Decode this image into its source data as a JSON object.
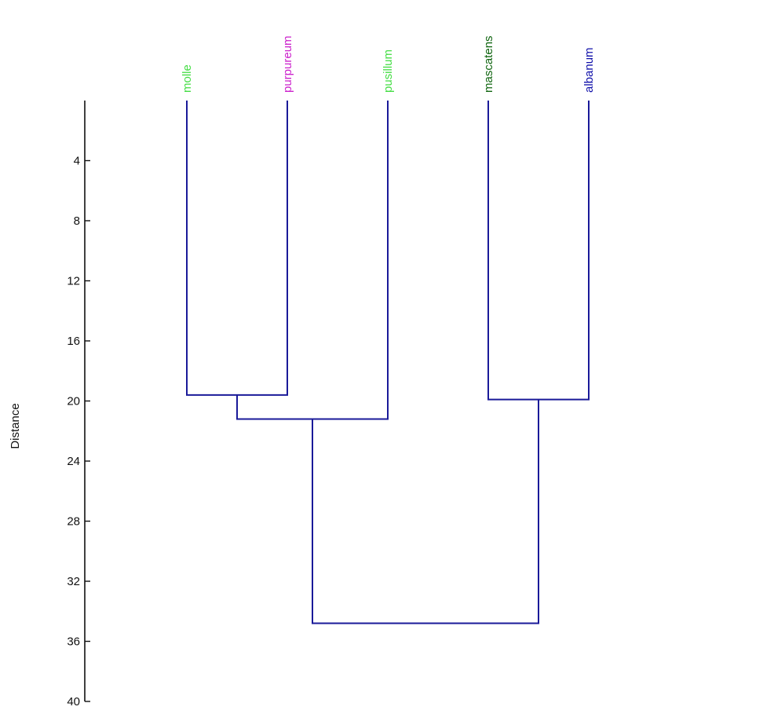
{
  "chart_data": {
    "type": "dendrogram",
    "ylabel": "Distance",
    "ylim": [
      0,
      40
    ],
    "y_ticks": [
      4,
      8,
      12,
      16,
      20,
      24,
      28,
      32,
      36,
      40
    ],
    "leaves": [
      {
        "name": "molle",
        "color": "#44dd44"
      },
      {
        "name": "purpureum",
        "color": "#cc22cc"
      },
      {
        "name": "pusillum",
        "color": "#44dd44"
      },
      {
        "name": "mascatens",
        "color": "#116611"
      },
      {
        "name": "albanum",
        "color": "#1111aa"
      }
    ],
    "merges": [
      {
        "left": "molle",
        "right": "purpureum",
        "height": 19.6
      },
      {
        "left": "molle+purpureum",
        "right": "pusillum",
        "height": 21.2
      },
      {
        "left": "mascatens",
        "right": "albanum",
        "height": 19.9
      },
      {
        "left": "molle+purpureum+pusillum",
        "right": "mascatens+albanum",
        "height": 34.8
      }
    ],
    "branch_color": "#1a1a99",
    "axis_color": "#111111"
  }
}
